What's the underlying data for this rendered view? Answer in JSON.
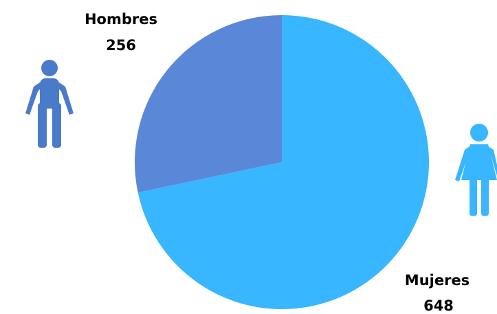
{
  "chart_data": {
    "type": "pie",
    "categories": [
      "Hombres",
      "Mujeres"
    ],
    "values": [
      256,
      648
    ],
    "colors": [
      "#5B87D8",
      "#38B6FF"
    ],
    "title": "",
    "legend": "none"
  },
  "icons": {
    "men": {
      "name": "man-icon",
      "color": "#4A7BCB"
    },
    "women": {
      "name": "woman-icon",
      "color": "#38B6FF"
    }
  }
}
